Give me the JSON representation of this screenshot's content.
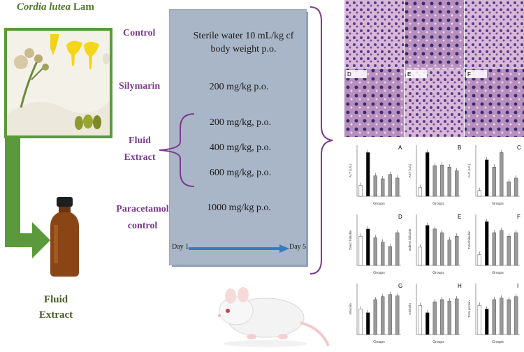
{
  "plant": {
    "name": "Cordia lutea",
    "author": "Lam"
  },
  "groups": {
    "control": "Control",
    "silymarin": "Silymarin",
    "fluid_extract_line1": "Fluid",
    "fluid_extract_line2": "Extract",
    "paracetamol_line1": "Paracetamol",
    "paracetamol_line2": "control"
  },
  "doses": {
    "control_line1": "Sterile water 10 mL/kg cf",
    "control_line2": "body weight p.o.",
    "silymarin": "200 mg/kg p.o.",
    "fe_1": "200 mg/kg, p.o.",
    "fe_2": "400 mg/kg, p.o.",
    "fe_3": "600 mg/kg, p.o.",
    "paracetamol": "1000 mg/kg p.o."
  },
  "timeline": {
    "start": "Day 1",
    "end": "Day 5"
  },
  "bottle_label": {
    "line1": "Fluid",
    "line2": "Extract"
  },
  "micro_labels": [
    "",
    "",
    "",
    "D",
    "E",
    "F"
  ],
  "charts": [
    {
      "letter": "A",
      "xlabel": "Groups",
      "values": [
        1.5,
        6.0,
        2.8,
        2.4,
        3.0,
        2.5
      ],
      "ylabel": "ALT (U/L)"
    },
    {
      "letter": "B",
      "xlabel": "Groups",
      "values": [
        1.2,
        6.0,
        4.2,
        4.3,
        4.0,
        3.5
      ],
      "ylabel": "AST (U/L)"
    },
    {
      "letter": "C",
      "xlabel": "Groups",
      "values": [
        0.8,
        5.0,
        4.0,
        6.0,
        2.0,
        2.5
      ],
      "ylabel": "ALP (U/L)"
    },
    {
      "letter": "D",
      "xlabel": "Groups",
      "values": [
        4.0,
        5.0,
        3.8,
        3.2,
        2.6,
        4.5
      ],
      "ylabel": "Direct bilirubin"
    },
    {
      "letter": "E",
      "xlabel": "Groups",
      "values": [
        2.5,
        5.5,
        5.0,
        4.5,
        3.5,
        4.0
      ],
      "ylabel": "Indirect bilirubin"
    },
    {
      "letter": "F",
      "xlabel": "Groups",
      "values": [
        1.5,
        6.0,
        4.5,
        4.8,
        4.0,
        4.5
      ],
      "ylabel": "Total bilirubin"
    },
    {
      "letter": "G",
      "xlabel": "Groups",
      "values": [
        3.5,
        3.0,
        4.8,
        5.2,
        5.5,
        5.3
      ],
      "ylabel": "Albumin"
    },
    {
      "letter": "H",
      "xlabel": "Groups",
      "values": [
        4.0,
        3.0,
        4.5,
        4.8,
        4.6,
        4.9
      ],
      "ylabel": "Globulin"
    },
    {
      "letter": "I",
      "xlabel": "Groups",
      "values": [
        4.0,
        3.5,
        4.8,
        5.0,
        4.8,
        5.2
      ],
      "ylabel": "Total protein"
    }
  ],
  "colors": {
    "green": "#5a9a3a",
    "purple": "#7b3a8e",
    "panel": "#a9b6c7",
    "arrow_blue": "#3a78c9",
    "bar_black": "#000000",
    "bar_grey": "#9a9a9a"
  }
}
